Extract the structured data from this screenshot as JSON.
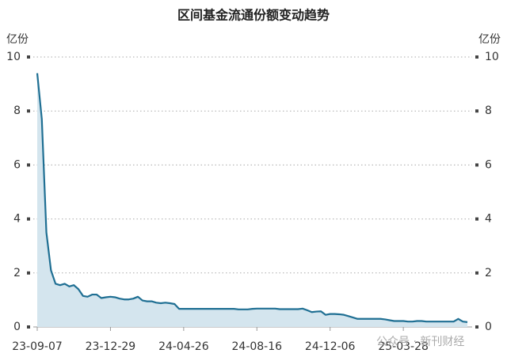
{
  "chart_data": {
    "type": "area",
    "title": "区间基金流通份额变动趋势",
    "y_label": "亿份",
    "y2_label": "亿份",
    "watermark": "公众号 · 新刊财经",
    "categories": [
      "23-09-07",
      null,
      null,
      null,
      null,
      null,
      null,
      null,
      null,
      null,
      null,
      null,
      null,
      null,
      null,
      null,
      "23-12-29",
      null,
      null,
      null,
      null,
      null,
      null,
      null,
      null,
      null,
      null,
      null,
      null,
      null,
      null,
      null,
      "24-04-26",
      null,
      null,
      null,
      null,
      null,
      null,
      null,
      null,
      null,
      null,
      null,
      null,
      null,
      null,
      null,
      "24-08-16",
      null,
      null,
      null,
      null,
      null,
      null,
      null,
      null,
      null,
      null,
      null,
      null,
      null,
      null,
      null,
      "24-12-06",
      null,
      null,
      null,
      null,
      null,
      null,
      null,
      null,
      null,
      null,
      null,
      null,
      null,
      null,
      null,
      "25-03-28",
      null,
      null,
      null,
      null,
      null,
      null,
      null,
      null,
      null,
      null,
      null,
      null,
      null,
      null
    ],
    "series": [
      {
        "name": "流通份额",
        "color": "#1f6f93",
        "fill": "#d4e5ee",
        "values": [
          9.4,
          7.7,
          3.5,
          2.1,
          1.6,
          1.55,
          1.6,
          1.5,
          1.55,
          1.4,
          1.15,
          1.12,
          1.2,
          1.2,
          1.07,
          1.1,
          1.12,
          1.1,
          1.05,
          1.02,
          1.02,
          1.05,
          1.12,
          0.98,
          0.95,
          0.95,
          0.9,
          0.88,
          0.9,
          0.88,
          0.85,
          0.67,
          0.67,
          0.67,
          0.67,
          0.67,
          0.67,
          0.67,
          0.67,
          0.67,
          0.67,
          0.67,
          0.67,
          0.67,
          0.65,
          0.65,
          0.65,
          0.67,
          0.68,
          0.68,
          0.68,
          0.68,
          0.68,
          0.66,
          0.66,
          0.66,
          0.66,
          0.66,
          0.68,
          0.62,
          0.55,
          0.57,
          0.58,
          0.45,
          0.48,
          0.48,
          0.47,
          0.45,
          0.4,
          0.35,
          0.3,
          0.3,
          0.3,
          0.3,
          0.3,
          0.3,
          0.28,
          0.25,
          0.22,
          0.22,
          0.22,
          0.2,
          0.2,
          0.22,
          0.22,
          0.2,
          0.2,
          0.2,
          0.2,
          0.2,
          0.2,
          0.2,
          0.3,
          0.2,
          0.18
        ]
      }
    ],
    "ylim": [
      0,
      10
    ],
    "yticks": [
      0,
      2,
      4,
      6,
      8,
      10
    ],
    "y2lim": [
      0,
      10
    ],
    "y2ticks": [
      0,
      2,
      4,
      6,
      8,
      10
    ],
    "grid": true
  }
}
